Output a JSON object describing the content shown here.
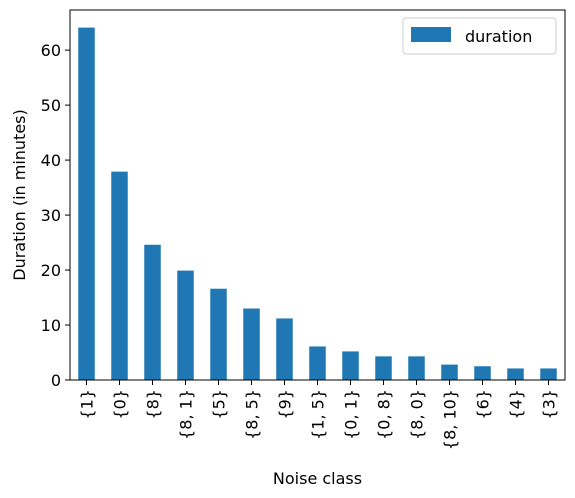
{
  "chart_data": {
    "type": "bar",
    "title": "",
    "xlabel": "Noise class",
    "ylabel": "Duration (in minutes)",
    "categories": [
      "{1}",
      "{0}",
      "{8}",
      "{8, 1}",
      "{5}",
      "{8, 5}",
      "{9}",
      "{1, 5}",
      "{0, 1}",
      "{0, 8}",
      "{8, 0}",
      "{8, 10}",
      "{6}",
      "{4}",
      "{3}"
    ],
    "series": [
      {
        "name": "duration",
        "color": "#1f77b4",
        "values": [
          64.1,
          37.9,
          24.6,
          19.9,
          16.6,
          13.0,
          11.2,
          6.1,
          5.2,
          4.3,
          4.3,
          2.8,
          2.5,
          2.1,
          2.1
        ]
      }
    ],
    "ylim": [
      0,
      67.3
    ],
    "yticks": [
      0,
      10,
      20,
      30,
      40,
      50,
      60
    ],
    "legend": "top-right",
    "grid": false
  }
}
